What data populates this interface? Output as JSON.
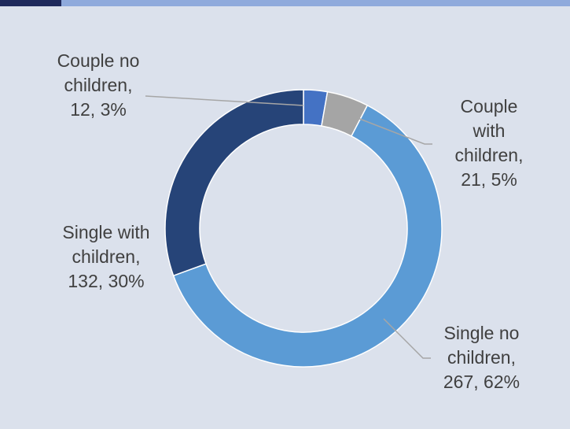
{
  "chart_data": {
    "type": "donut",
    "categories": [
      "Couple no children",
      "Couple with children",
      "Single no children",
      "Single with children"
    ],
    "values": [
      12,
      21,
      267,
      132
    ],
    "percent_labels": [
      "3%",
      "5%",
      "62%",
      "30%"
    ],
    "colors": [
      "#4472c4",
      "#a5a5a5",
      "#5b9bd5",
      "#264478"
    ]
  }
}
